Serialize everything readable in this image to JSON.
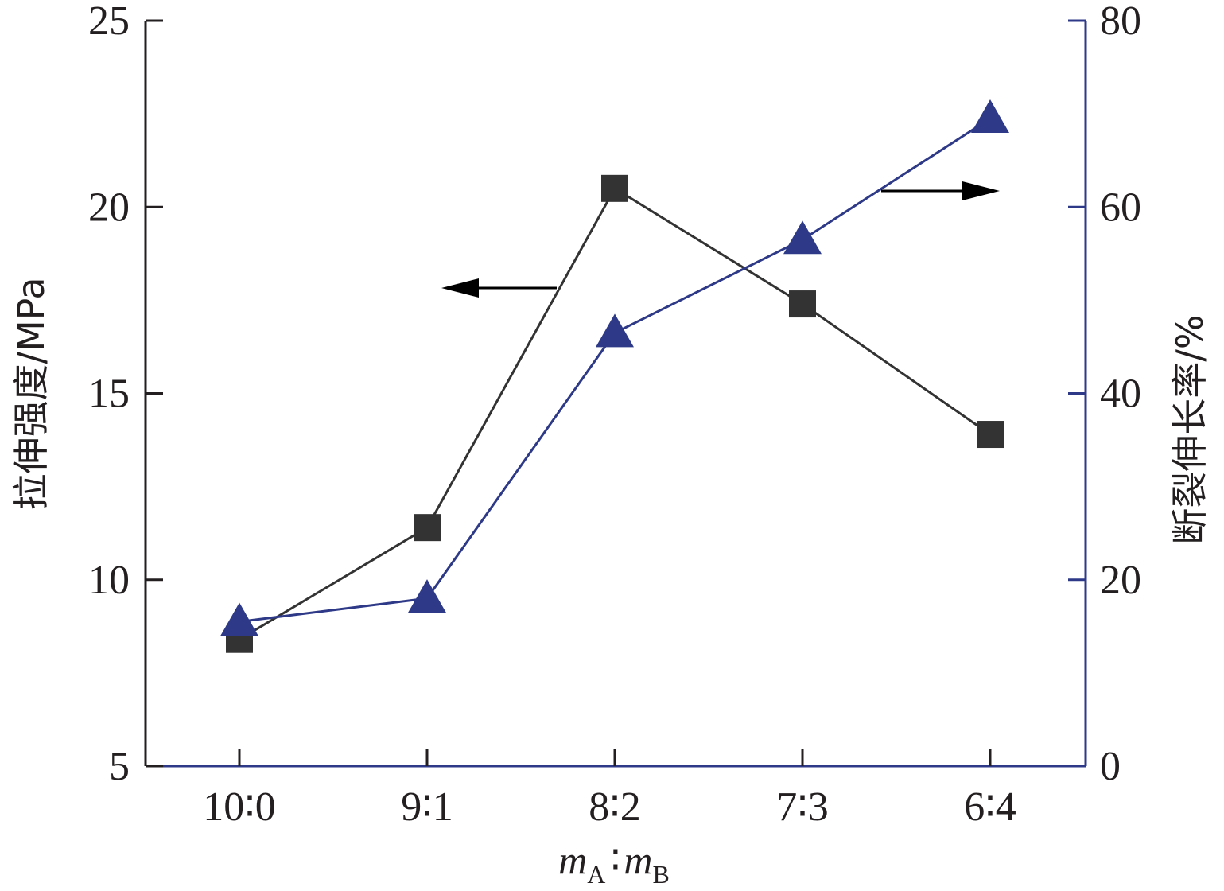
{
  "chart_data": {
    "type": "line",
    "categories": [
      "10∶0",
      "9∶1",
      "8∶2",
      "7∶3",
      "6∶4"
    ],
    "xlabel": {
      "m1": "m",
      "sub1": "A",
      "sep": "∶",
      "m2": "m",
      "sub2": "B"
    },
    "left_axis": {
      "label": "拉伸强度/MPa",
      "ylim": [
        5,
        25
      ],
      "ticks": [
        5,
        10,
        15,
        20,
        25
      ],
      "color": "#231f20"
    },
    "right_axis": {
      "label": "断裂伸长率/%",
      "ylim": [
        0,
        80
      ],
      "ticks": [
        0,
        20,
        40,
        60,
        80
      ],
      "color": "#2e3a87"
    },
    "series": [
      {
        "axis": "left",
        "marker": "square",
        "color": "#333333",
        "values": [
          8.4,
          11.4,
          20.5,
          17.4,
          13.9
        ]
      },
      {
        "axis": "right",
        "marker": "triangle",
        "color": "#2e3a87",
        "values": [
          15.5,
          18,
          46.5,
          56.5,
          69.5
        ]
      }
    ],
    "annotations": [
      {
        "type": "arrow",
        "direction": "left",
        "series_index": 0
      },
      {
        "type": "arrow",
        "direction": "right",
        "series_index": 1
      }
    ],
    "grid": false
  }
}
